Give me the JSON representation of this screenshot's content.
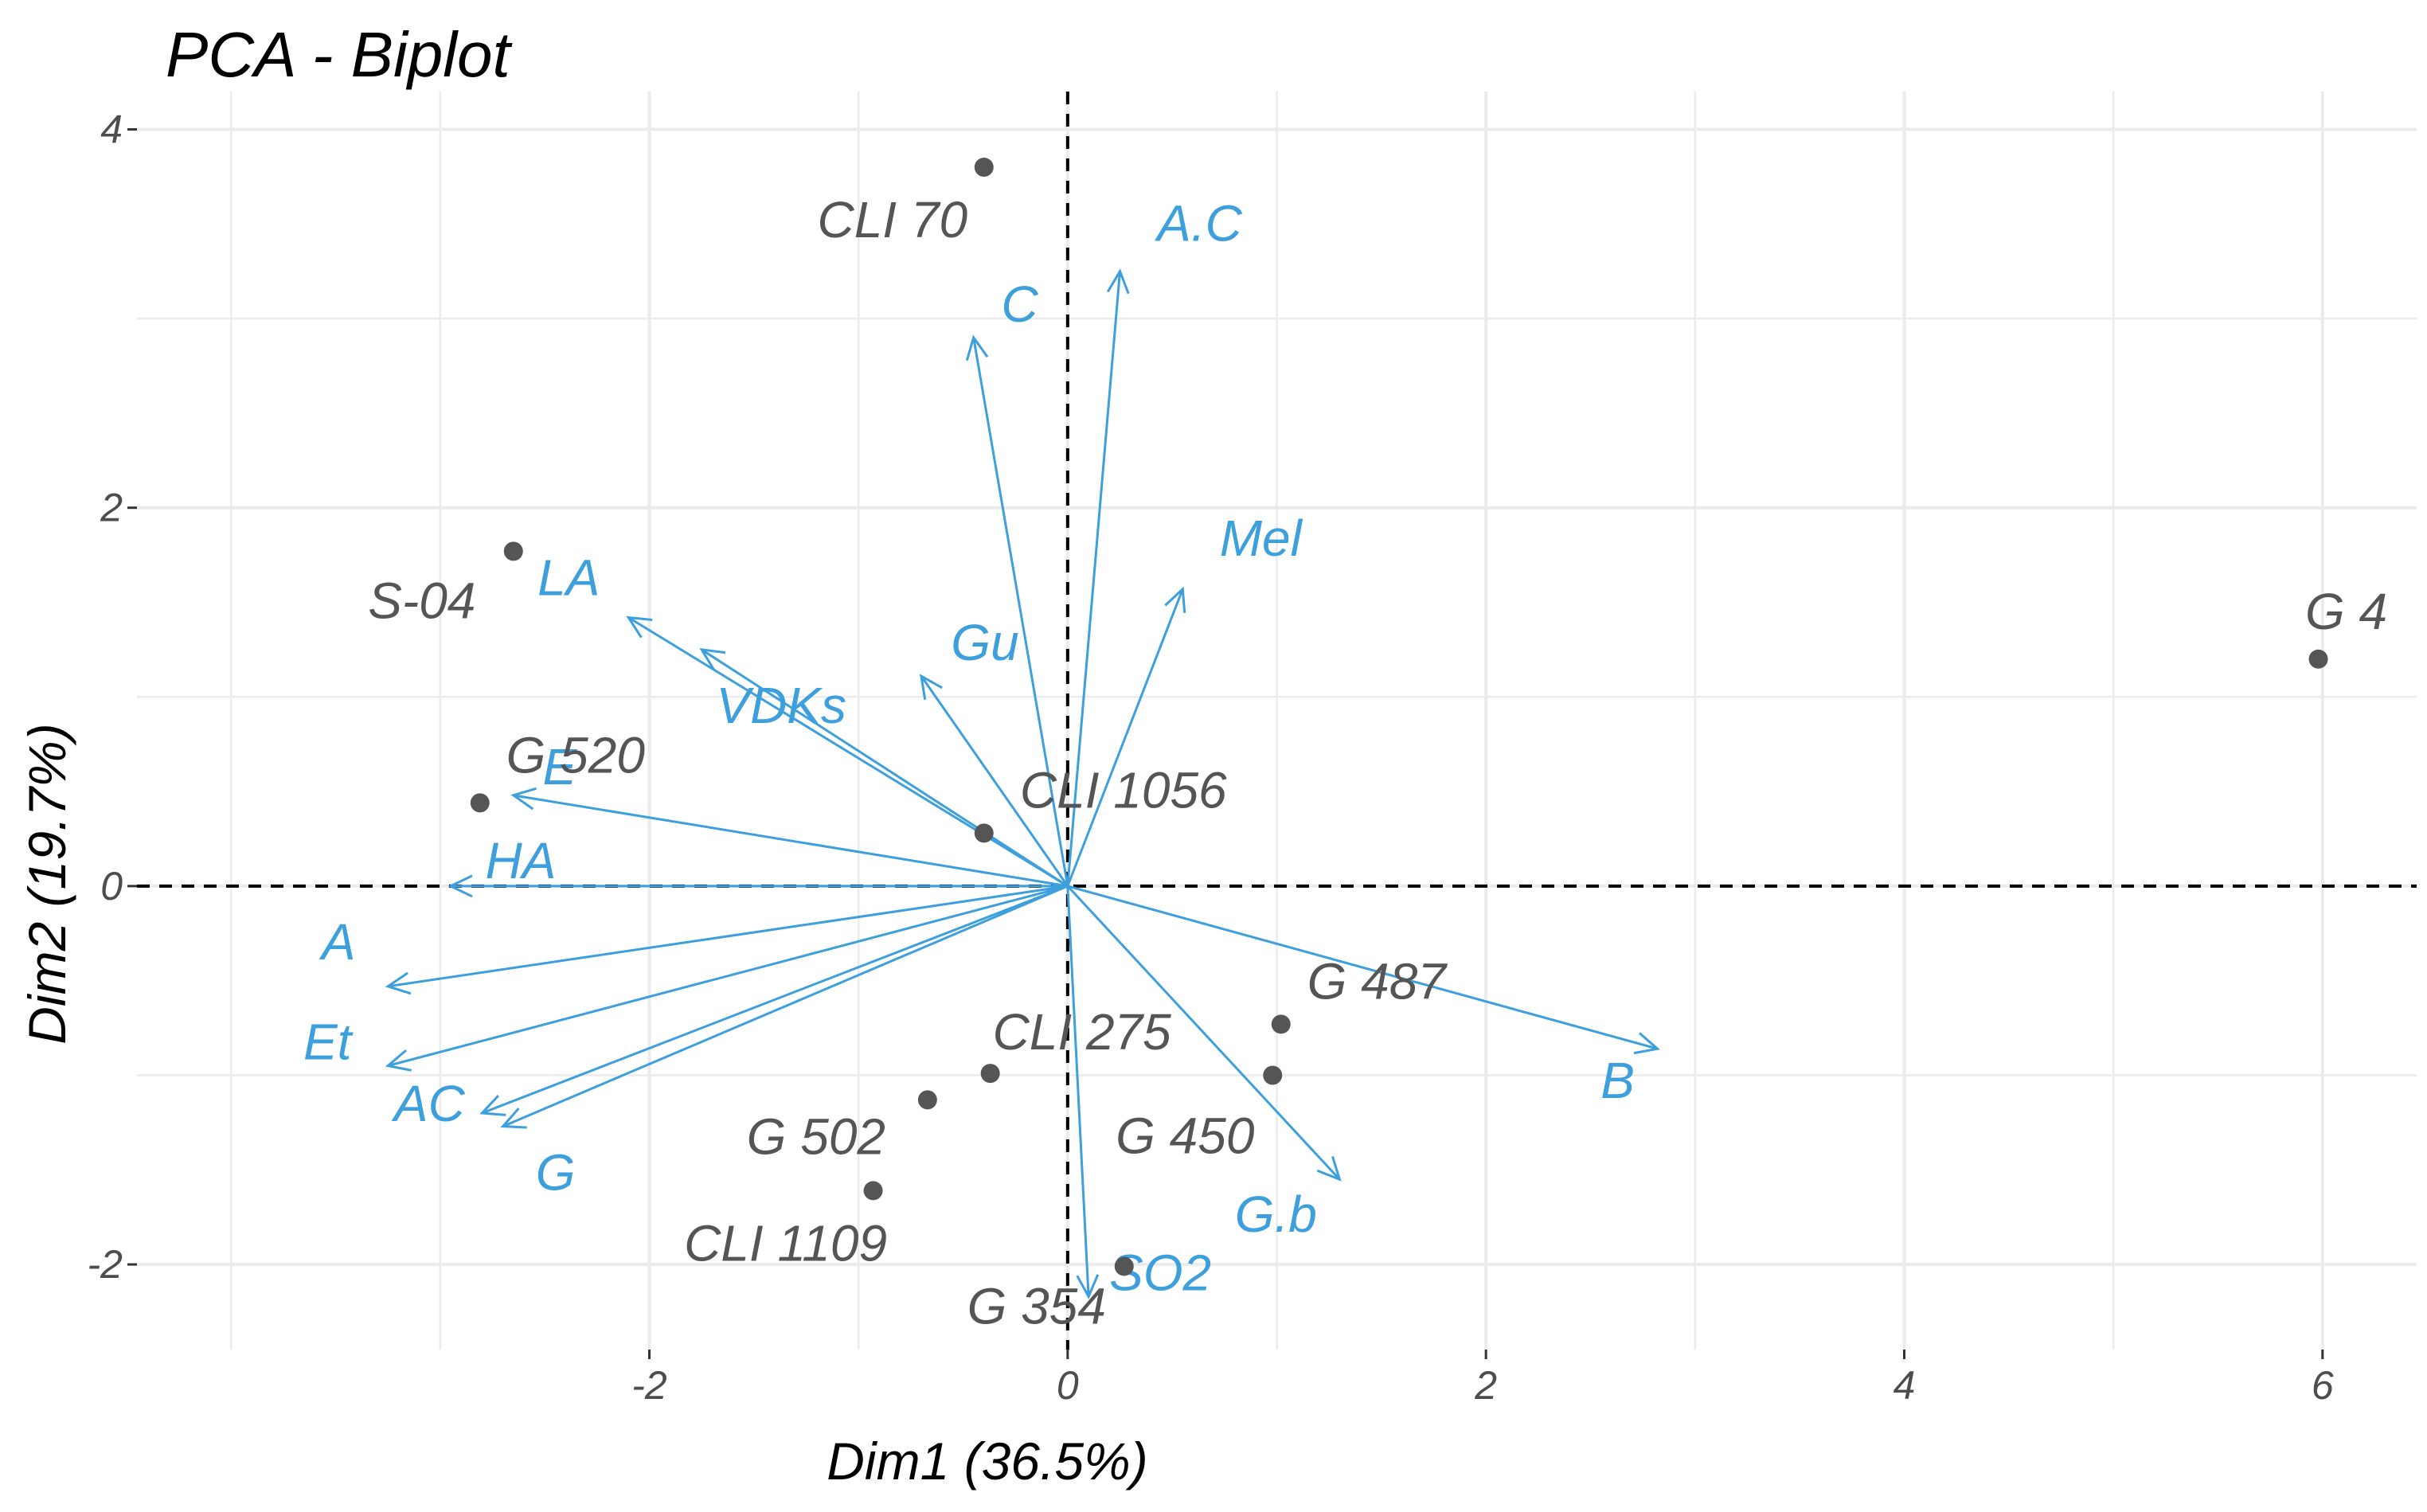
{
  "chart_data": {
    "type": "scatter",
    "subtype": "pca-biplot",
    "title": "PCA - Biplot",
    "xlabel": "Dim1 (36.5%)",
    "ylabel": "Dim2 (19.7%)",
    "xlim": [
      -4.45,
      6.45
    ],
    "ylim": [
      -2.45,
      4.2
    ],
    "x_ticks": [
      -2,
      0,
      2,
      4,
      6
    ],
    "y_ticks": [
      -2,
      0,
      2,
      4
    ],
    "grid": true,
    "reference_lines": {
      "x": 0,
      "y": 0,
      "style": "dashed"
    },
    "colors": {
      "individuals": "#555555",
      "variables": "#3d9fdc",
      "grid": "#ebebeb",
      "reference": "#000000"
    },
    "individuals": [
      {
        "name": "CLI 70",
        "x": -0.4,
        "y": 3.8
      },
      {
        "name": "S-04",
        "x": -2.65,
        "y": 1.77
      },
      {
        "name": "G 4",
        "x": 5.98,
        "y": 1.2
      },
      {
        "name": "G 520",
        "x": -2.81,
        "y": 0.44
      },
      {
        "name": "CLI 1056",
        "x": -0.4,
        "y": 0.28
      },
      {
        "name": "G 487",
        "x": 1.02,
        "y": -0.73
      },
      {
        "name": "CLI 275",
        "x": -0.37,
        "y": -0.99
      },
      {
        "name": "G 450",
        "x": 0.98,
        "y": -1.0
      },
      {
        "name": "G 502",
        "x": -0.67,
        "y": -1.13
      },
      {
        "name": "CLI 1109",
        "x": -0.93,
        "y": -1.61
      },
      {
        "name": "G 354",
        "x": 0.27,
        "y": -2.01
      }
    ],
    "variables": [
      {
        "name": "A.C",
        "x": 0.25,
        "y": 3.25
      },
      {
        "name": "C",
        "x": -0.45,
        "y": 2.9
      },
      {
        "name": "Mel",
        "x": 0.55,
        "y": 1.57
      },
      {
        "name": "LA",
        "x": -2.1,
        "y": 1.42
      },
      {
        "name": "VDKs",
        "x": -1.75,
        "y": 1.25
      },
      {
        "name": "Gu",
        "x": -0.7,
        "y": 1.11
      },
      {
        "name": "E",
        "x": -2.65,
        "y": 0.48
      },
      {
        "name": "HA",
        "x": -2.95,
        "y": 0.0
      },
      {
        "name": "A",
        "x": -3.25,
        "y": -0.53
      },
      {
        "name": "Et",
        "x": -3.25,
        "y": -0.95
      },
      {
        "name": "AC",
        "x": -2.8,
        "y": -1.2
      },
      {
        "name": "G",
        "x": -2.7,
        "y": -1.27
      },
      {
        "name": "B",
        "x": 2.82,
        "y": -0.86
      },
      {
        "name": "G.b",
        "x": 1.3,
        "y": -1.55
      },
      {
        "name": "SO2",
        "x": 0.1,
        "y": -2.17
      }
    ]
  }
}
